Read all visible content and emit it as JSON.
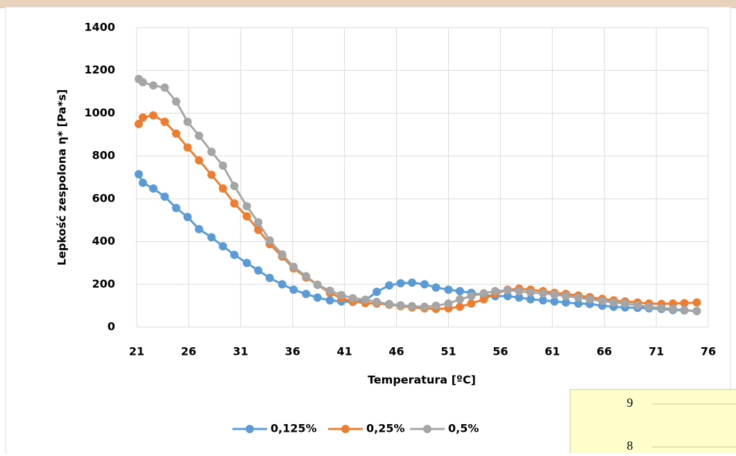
{
  "chart_data": {
    "type": "line",
    "x_label": "Temperatura [ºC]",
    "y_label": "Lepkość zespolona η* [Pa*s]",
    "x": [
      21.2,
      21.6,
      22.6,
      23.7,
      24.8,
      25.9,
      27.0,
      28.2,
      29.3,
      30.4,
      31.6,
      32.7,
      33.8,
      35.0,
      36.1,
      37.3,
      38.4,
      39.6,
      40.7,
      41.8,
      43.0,
      44.1,
      45.3,
      46.4,
      47.5,
      48.7,
      49.8,
      51.0,
      52.1,
      53.2,
      54.4,
      55.5,
      56.7,
      57.8,
      58.9,
      60.1,
      61.2,
      62.3,
      63.5,
      64.6,
      65.8,
      66.9,
      68.0,
      69.2,
      70.3,
      71.5,
      72.6,
      73.7,
      74.9
    ],
    "series": [
      {
        "name": "0,125%",
        "color": "#5b9bd5",
        "values": [
          715,
          675,
          648,
          610,
          557,
          515,
          458,
          420,
          378,
          338,
          300,
          265,
          230,
          200,
          175,
          155,
          138,
          125,
          120,
          118,
          125,
          165,
          195,
          205,
          208,
          200,
          185,
          175,
          168,
          160,
          150,
          145,
          145,
          138,
          130,
          125,
          120,
          115,
          110,
          108,
          100,
          95,
          92,
          90,
          88,
          85,
          80,
          78,
          75
        ]
      },
      {
        "name": "0,25%",
        "color": "#ed7d31",
        "values": [
          950,
          980,
          990,
          960,
          905,
          840,
          780,
          712,
          648,
          578,
          518,
          455,
          388,
          330,
          275,
          232,
          198,
          160,
          135,
          120,
          112,
          110,
          105,
          98,
          92,
          88,
          85,
          88,
          95,
          110,
          130,
          155,
          175,
          180,
          175,
          168,
          160,
          155,
          148,
          140,
          132,
          125,
          120,
          115,
          110,
          108,
          110,
          112,
          115
        ]
      },
      {
        "name": "0,5%",
        "color": "#a5a5a5",
        "values": [
          1160,
          1145,
          1130,
          1120,
          1055,
          960,
          895,
          820,
          755,
          660,
          565,
          490,
          405,
          340,
          282,
          238,
          198,
          170,
          150,
          135,
          128,
          118,
          108,
          102,
          98,
          95,
          100,
          110,
          130,
          145,
          158,
          168,
          172,
          168,
          162,
          158,
          152,
          145,
          138,
          130,
          122,
          115,
          110,
          102,
          95,
          90,
          85,
          80,
          75
        ]
      }
    ],
    "xlim": [
      21,
      76
    ],
    "xticks": [
      21,
      26,
      31,
      36,
      41,
      46,
      51,
      56,
      61,
      66,
      71,
      76
    ],
    "ylim": [
      0,
      1400
    ],
    "yticks": [
      0,
      200,
      400,
      600,
      800,
      1000,
      1200,
      1400
    ],
    "grid": true,
    "legend": "bottom"
  },
  "inset": {
    "tick_labels": [
      "9",
      "8"
    ]
  }
}
